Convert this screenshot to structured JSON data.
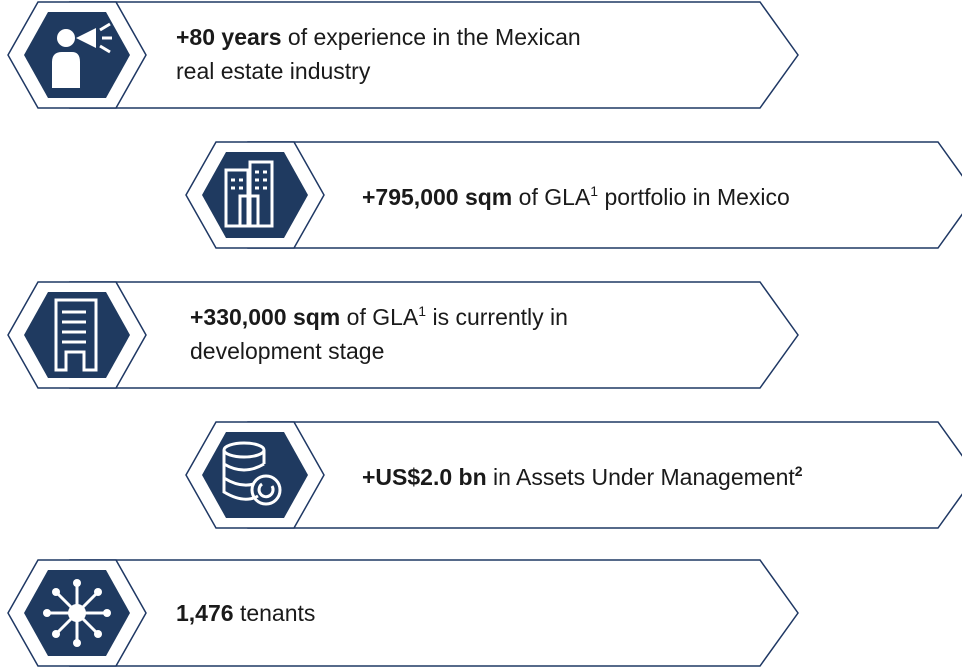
{
  "items": [
    {
      "bold": "+80 years",
      "text": "of experience in the Mexican",
      "line2": "real estate industry"
    },
    {
      "bold": "+795,000 sqm",
      "text": "of GLA",
      "sup": "1",
      "text_after": "portfolio in Mexico"
    },
    {
      "bold": "+330,000 sqm",
      "text": "of GLA",
      "sup": "1",
      "text_after": "is currently in",
      "line2": "development stage"
    },
    {
      "bold": "+US$2.0 bn",
      "text": "in Assets Under Management",
      "sup": "2"
    },
    {
      "bold": "1,476",
      "text": "tenants"
    }
  ]
}
